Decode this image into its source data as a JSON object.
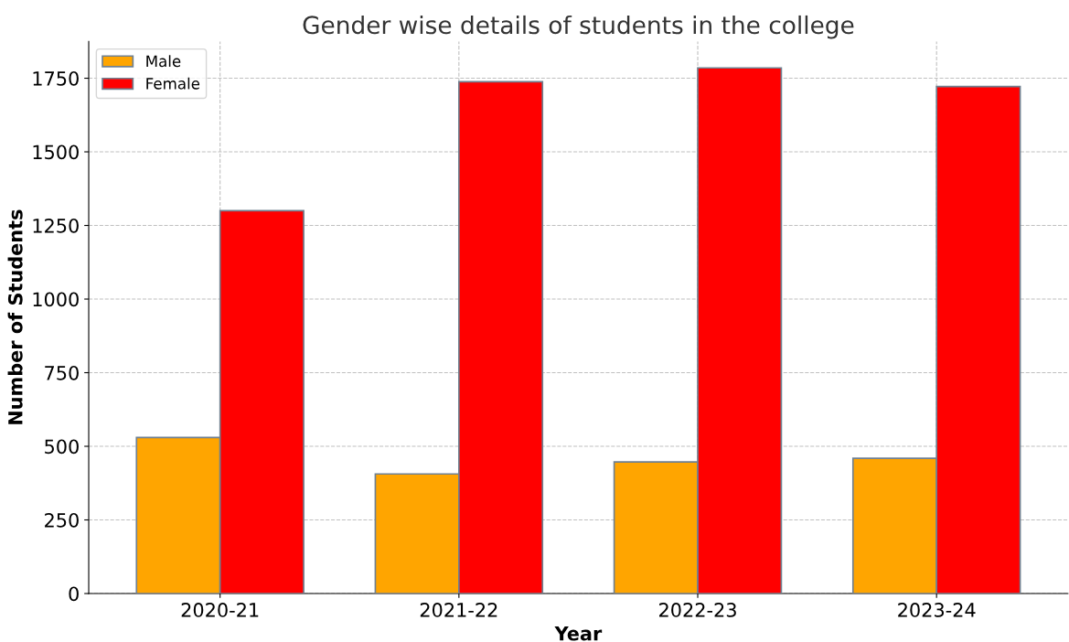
{
  "chart_data": {
    "type": "bar",
    "title": "Gender wise details of students in the college",
    "xlabel": "Year",
    "ylabel": "Number of Students",
    "categories": [
      "2020-21",
      "2021-22",
      "2022-23",
      "2023-24"
    ],
    "series": [
      {
        "name": "Male",
        "color": "#ffa500",
        "values": [
          530,
          406,
          447,
          459
        ]
      },
      {
        "name": "Female",
        "color": "#ff0000",
        "values": [
          1300,
          1738,
          1785,
          1722
        ]
      }
    ],
    "ylim": [
      0,
      1875
    ],
    "yticks": [
      0,
      250,
      500,
      750,
      1000,
      1250,
      1500,
      1750
    ],
    "grid": true,
    "legend": "top left"
  }
}
